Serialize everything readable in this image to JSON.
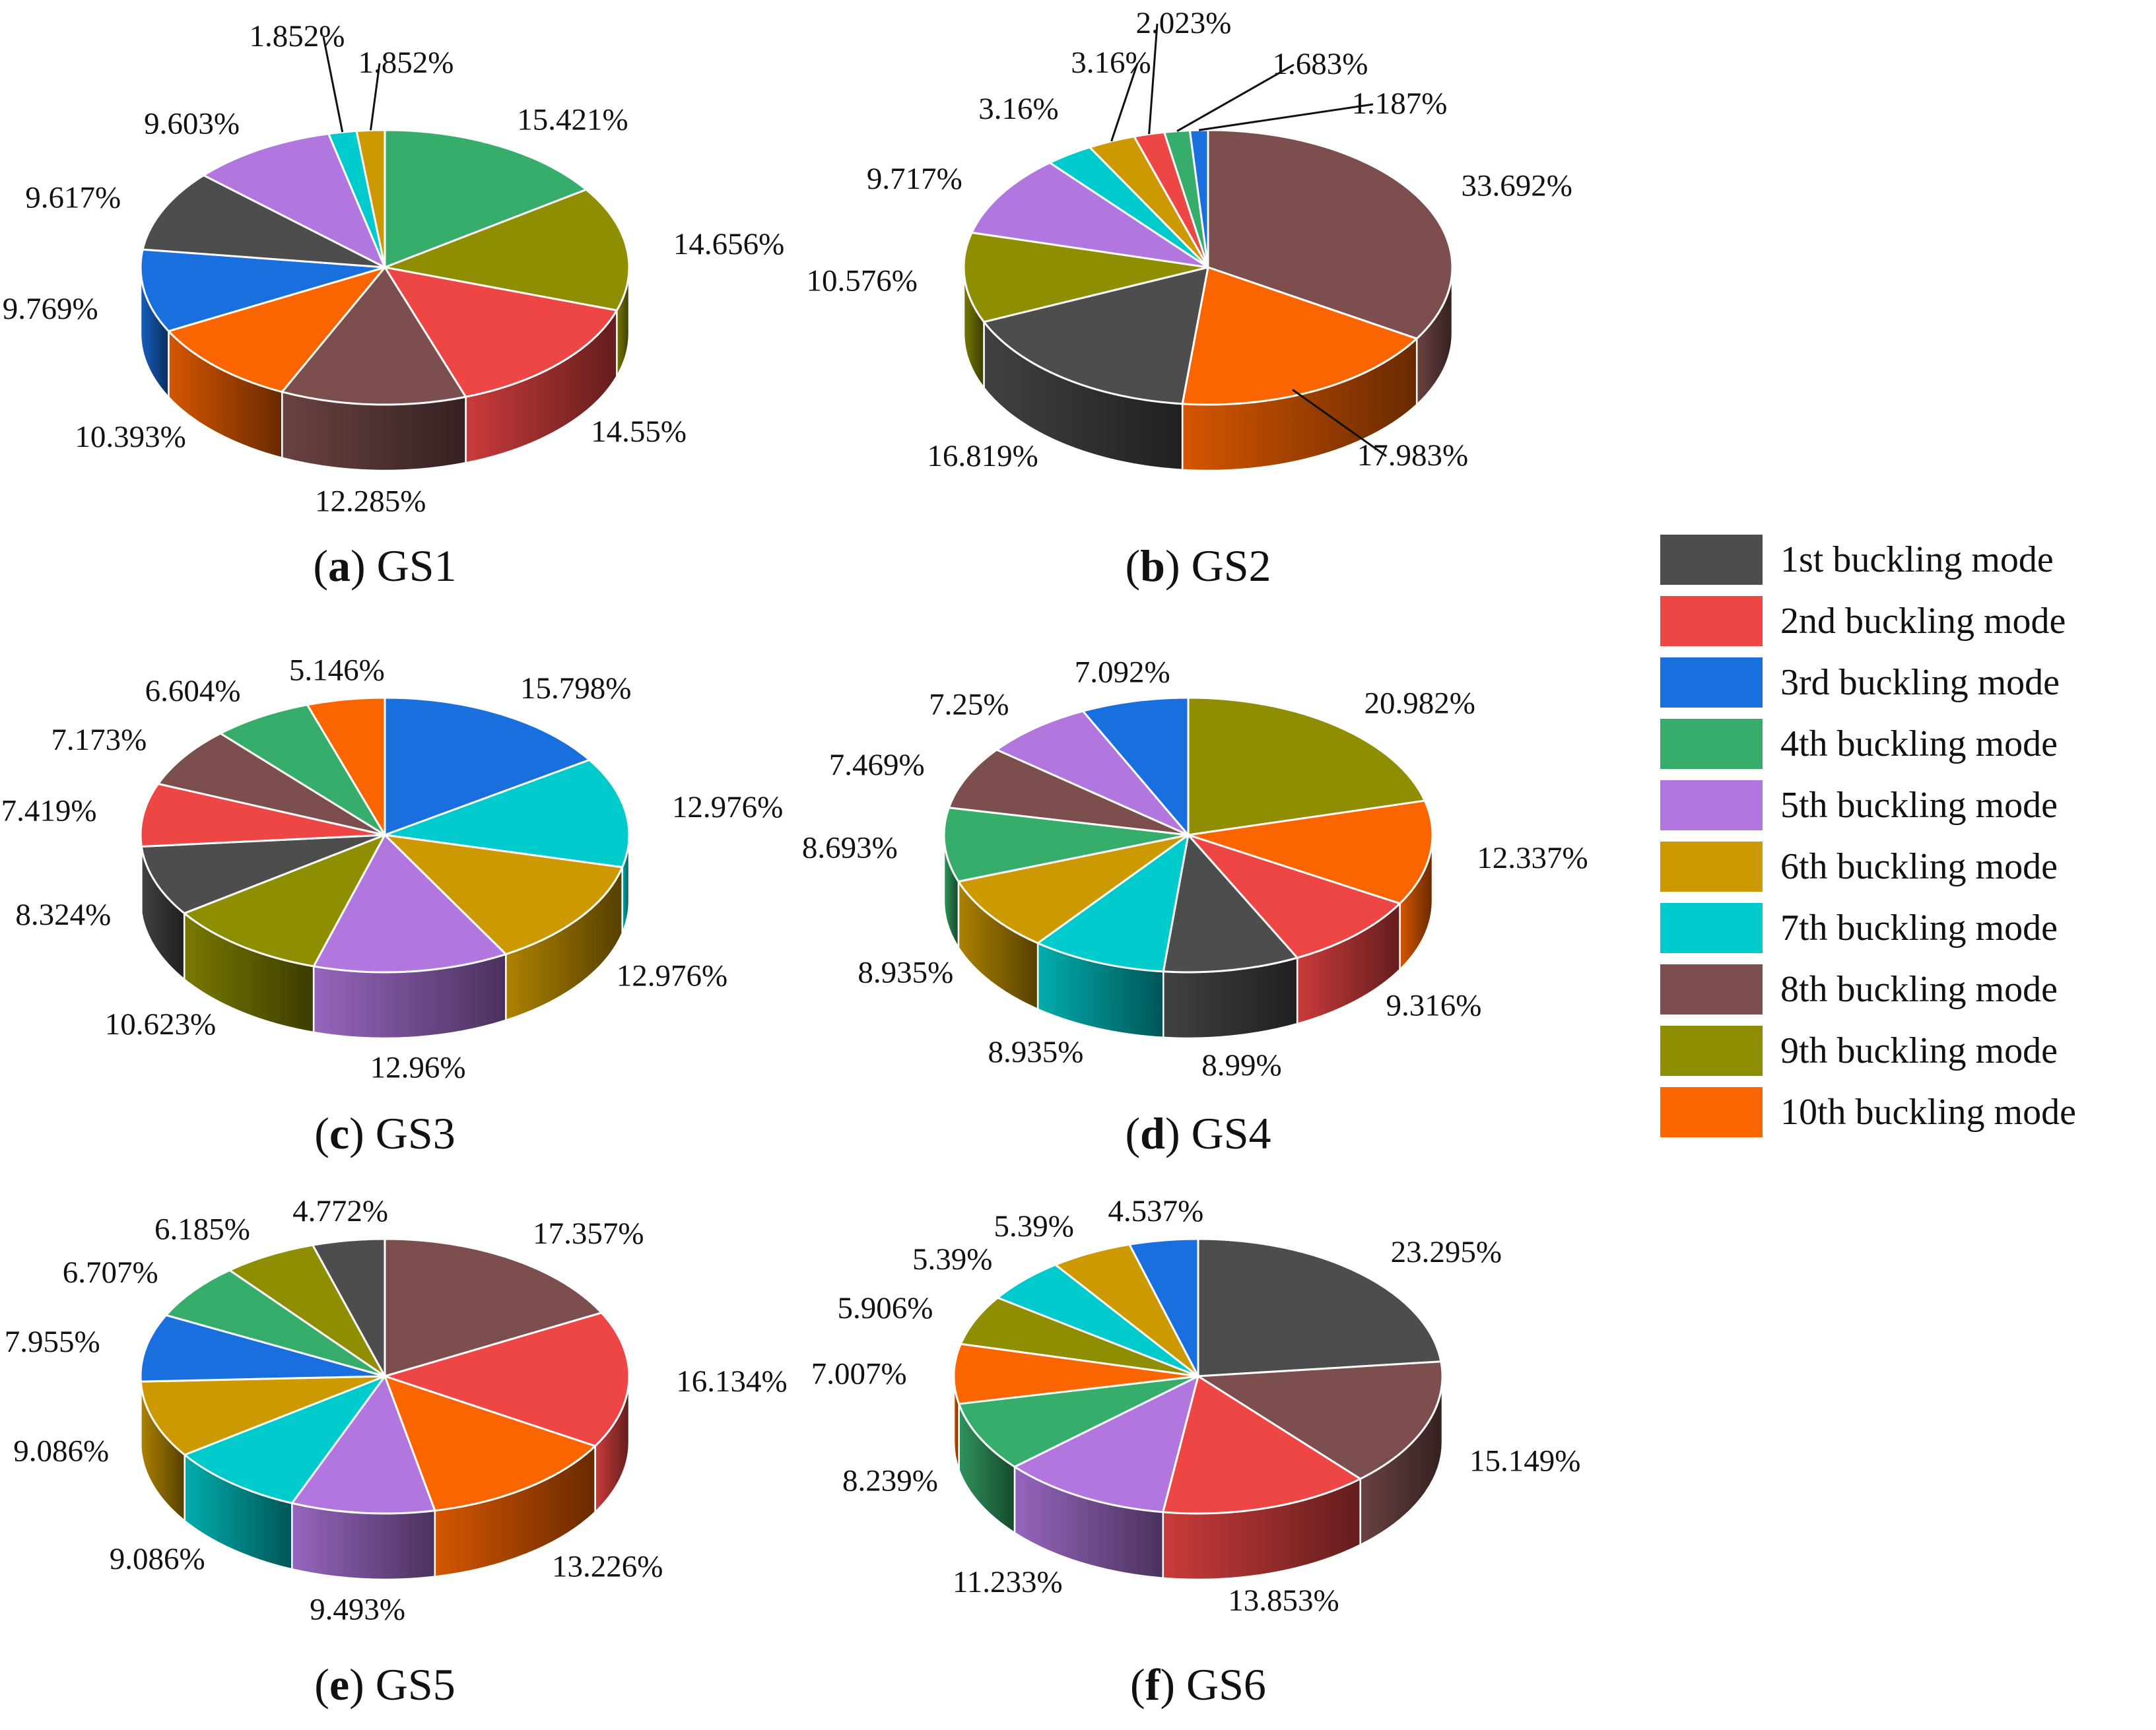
{
  "chart_data": [
    {
      "type": "pie",
      "title": "GS1",
      "caption_letter": "a",
      "slices": [
        {
          "mode": "4th buckling mode",
          "value": 15.421,
          "label": "15.421%"
        },
        {
          "mode": "9th buckling mode",
          "value": 14.656,
          "label": "14.656%"
        },
        {
          "mode": "2nd buckling mode",
          "value": 14.55,
          "label": "14.55%"
        },
        {
          "mode": "8th buckling mode",
          "value": 12.285,
          "label": "12.285%"
        },
        {
          "mode": "10th buckling mode",
          "value": 10.393,
          "label": "10.393%"
        },
        {
          "mode": "3rd buckling mode",
          "value": 9.769,
          "label": "9.769%"
        },
        {
          "mode": "1st buckling mode",
          "value": 9.617,
          "label": "9.617%"
        },
        {
          "mode": "5th buckling mode",
          "value": 9.603,
          "label": "9.603%"
        },
        {
          "mode": "7th buckling mode",
          "value": 1.852,
          "label": "1.852%"
        },
        {
          "mode": "6th buckling mode",
          "value": 1.852,
          "label": "1.852%"
        }
      ]
    },
    {
      "type": "pie",
      "title": "GS2",
      "caption_letter": "b",
      "slices": [
        {
          "mode": "8th buckling mode",
          "value": 33.692,
          "label": "33.692%"
        },
        {
          "mode": "10th buckling mode",
          "value": 17.983,
          "label": "17.983%"
        },
        {
          "mode": "1st buckling mode",
          "value": 16.819,
          "label": "16.819%"
        },
        {
          "mode": "9th buckling mode",
          "value": 10.576,
          "label": "10.576%"
        },
        {
          "mode": "5th buckling mode",
          "value": 9.717,
          "label": "9.717%"
        },
        {
          "mode": "7th buckling mode",
          "value": 3.16,
          "label": "3.16%"
        },
        {
          "mode": "6th buckling mode",
          "value": 3.16,
          "label": "3.16%"
        },
        {
          "mode": "2nd buckling mode",
          "value": 2.023,
          "label": "2.023%"
        },
        {
          "mode": "4th buckling mode",
          "value": 1.683,
          "label": "1.683%"
        },
        {
          "mode": "3rd buckling mode",
          "value": 1.187,
          "label": "1.187%"
        }
      ]
    },
    {
      "type": "pie",
      "title": "GS3",
      "caption_letter": "c",
      "slices": [
        {
          "mode": "3rd buckling mode",
          "value": 15.798,
          "label": "15.798%"
        },
        {
          "mode": "7th buckling mode",
          "value": 12.976,
          "label": "12.976%"
        },
        {
          "mode": "6th buckling mode",
          "value": 12.976,
          "label": "12.976%"
        },
        {
          "mode": "5th buckling mode",
          "value": 12.96,
          "label": "12.96%"
        },
        {
          "mode": "9th buckling mode",
          "value": 10.623,
          "label": "10.623%"
        },
        {
          "mode": "1st buckling mode",
          "value": 8.324,
          "label": "8.324%"
        },
        {
          "mode": "2nd buckling mode",
          "value": 7.419,
          "label": "7.419%"
        },
        {
          "mode": "8th buckling mode",
          "value": 7.173,
          "label": "7.173%"
        },
        {
          "mode": "4th buckling mode",
          "value": 6.604,
          "label": "6.604%"
        },
        {
          "mode": "10th buckling mode",
          "value": 5.146,
          "label": "5.146%"
        }
      ]
    },
    {
      "type": "pie",
      "title": "GS4",
      "caption_letter": "d",
      "slices": [
        {
          "mode": "9th buckling mode",
          "value": 20.982,
          "label": "20.982%"
        },
        {
          "mode": "10th buckling mode",
          "value": 12.337,
          "label": "12.337%"
        },
        {
          "mode": "2nd buckling mode",
          "value": 9.316,
          "label": "9.316%"
        },
        {
          "mode": "1st buckling mode",
          "value": 8.99,
          "label": "8.99%"
        },
        {
          "mode": "7th buckling mode",
          "value": 8.935,
          "label": "8.935%"
        },
        {
          "mode": "6th buckling mode",
          "value": 8.935,
          "label": "8.935%"
        },
        {
          "mode": "4th buckling mode",
          "value": 8.693,
          "label": "8.693%"
        },
        {
          "mode": "8th buckling mode",
          "value": 7.469,
          "label": "7.469%"
        },
        {
          "mode": "5th buckling mode",
          "value": 7.25,
          "label": "7.25%"
        },
        {
          "mode": "3rd buckling mode",
          "value": 7.092,
          "label": "7.092%"
        }
      ]
    },
    {
      "type": "pie",
      "title": "GS5",
      "caption_letter": "e",
      "slices": [
        {
          "mode": "8th buckling mode",
          "value": 17.357,
          "label": "17.357%"
        },
        {
          "mode": "2nd buckling mode",
          "value": 16.134,
          "label": "16.134%"
        },
        {
          "mode": "10th buckling mode",
          "value": 13.226,
          "label": "13.226%"
        },
        {
          "mode": "5th buckling mode",
          "value": 9.493,
          "label": "9.493%"
        },
        {
          "mode": "7th buckling mode",
          "value": 9.086,
          "label": "9.086%"
        },
        {
          "mode": "6th buckling mode",
          "value": 9.086,
          "label": "9.086%"
        },
        {
          "mode": "3rd buckling mode",
          "value": 7.955,
          "label": "7.955%"
        },
        {
          "mode": "4th buckling mode",
          "value": 6.707,
          "label": "6.707%"
        },
        {
          "mode": "9th buckling mode",
          "value": 6.185,
          "label": "6.185%"
        },
        {
          "mode": "1st buckling mode",
          "value": 4.772,
          "label": "4.772%"
        }
      ]
    },
    {
      "type": "pie",
      "title": "GS6",
      "caption_letter": "f",
      "slices": [
        {
          "mode": "1st buckling mode",
          "value": 23.295,
          "label": "23.295%"
        },
        {
          "mode": "8th buckling mode",
          "value": 15.149,
          "label": "15.149%"
        },
        {
          "mode": "2nd buckling mode",
          "value": 13.853,
          "label": "13.853%"
        },
        {
          "mode": "5th buckling mode",
          "value": 11.233,
          "label": "11.233%"
        },
        {
          "mode": "4th buckling mode",
          "value": 8.239,
          "label": "8.239%"
        },
        {
          "mode": "10th buckling mode",
          "value": 7.007,
          "label": "7.007%"
        },
        {
          "mode": "9th buckling mode",
          "value": 5.906,
          "label": "5.906%"
        },
        {
          "mode": "7th buckling mode",
          "value": 5.39,
          "label": "5.39%"
        },
        {
          "mode": "6th buckling mode",
          "value": 5.39,
          "label": "5.39%"
        },
        {
          "mode": "3rd buckling mode",
          "value": 4.537,
          "label": "4.537%"
        }
      ]
    }
  ],
  "legend": [
    {
      "label": "1st buckling mode",
      "color": "#4d4d4d"
    },
    {
      "label": "2nd buckling mode",
      "color": "#ee4545"
    },
    {
      "label": "3rd buckling mode",
      "color": "#1a6fdf"
    },
    {
      "label": "4th buckling mode",
      "color": "#37ad6b"
    },
    {
      "label": "5th buckling mode",
      "color": "#b177de"
    },
    {
      "label": "6th buckling mode",
      "color": "#cc9900"
    },
    {
      "label": "7th buckling mode",
      "color": "#00cbcc"
    },
    {
      "label": "8th buckling mode",
      "color": "#7d4e4e"
    },
    {
      "label": "9th buckling mode",
      "color": "#8e8e00"
    },
    {
      "label": "10th buckling mode",
      "color": "#fb6500"
    }
  ]
}
